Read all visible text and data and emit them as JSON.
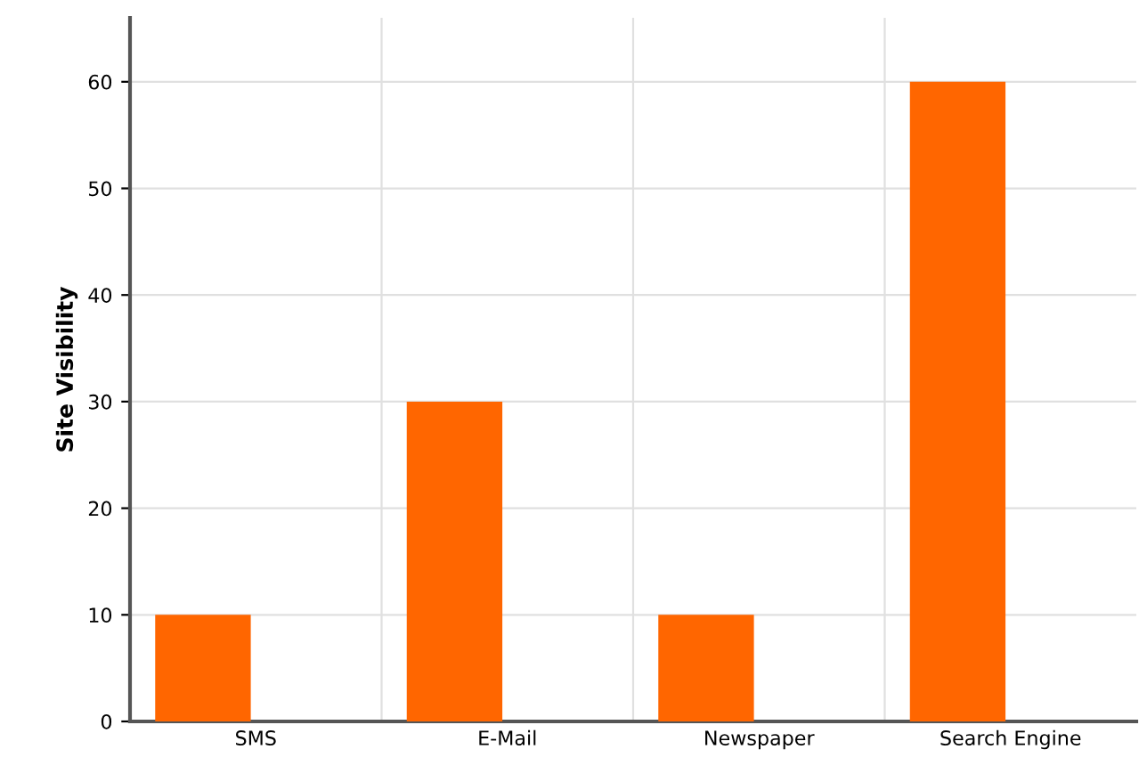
{
  "chart_data": {
    "type": "bar",
    "ylabel": "Site Visibility",
    "categories": [
      "SMS",
      "E-Mail",
      "Newspaper",
      "Search Engine"
    ],
    "series": [
      {
        "color": "#ff6600",
        "values": [
          10,
          30,
          10,
          60
        ]
      }
    ],
    "ylim": [
      0,
      66
    ],
    "yticks": [
      0,
      10,
      20,
      30,
      40,
      50,
      60
    ],
    "grid": true
  }
}
